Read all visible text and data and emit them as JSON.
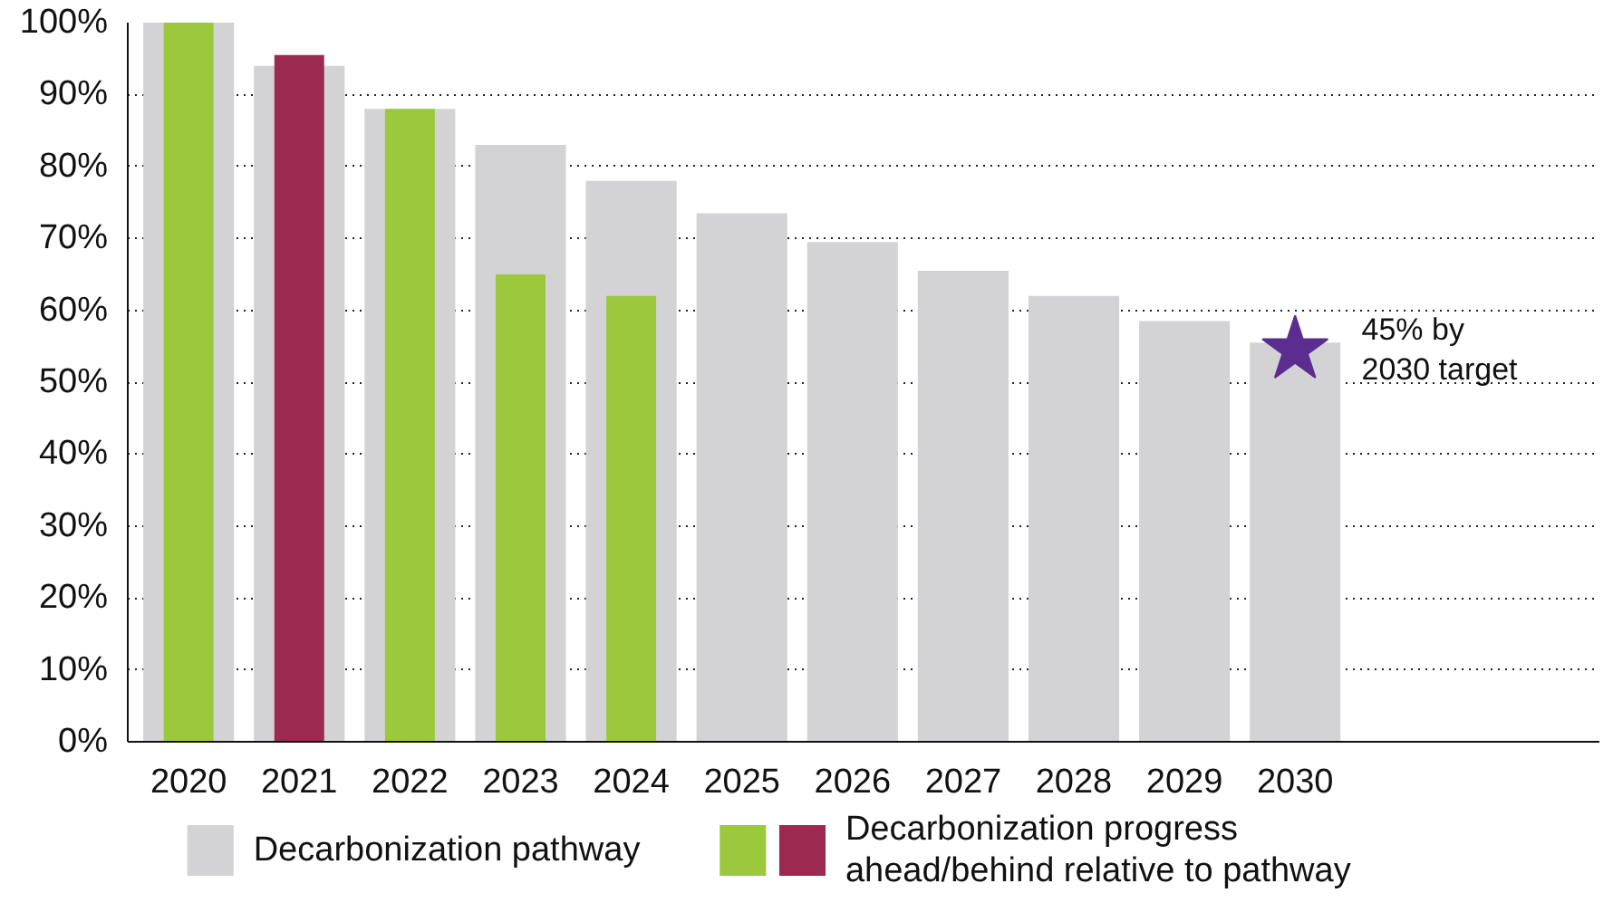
{
  "chart_data": {
    "type": "bar",
    "categories": [
      "2020",
      "2021",
      "2022",
      "2023",
      "2024",
      "2025",
      "2026",
      "2027",
      "2028",
      "2029",
      "2030"
    ],
    "series": [
      {
        "name": "Decarbonization pathway",
        "color": "#d3d3d5",
        "values": [
          100,
          94,
          88,
          83,
          78,
          73.5,
          69.5,
          65.5,
          62,
          58.5,
          55.5
        ]
      },
      {
        "name": "Decarbonization progress\nahead/behind relative to pathway",
        "colors": [
          "#9bc83c",
          "#9c2a50",
          "#9bc83c",
          "#9bc83c",
          "#9bc83c",
          null,
          null,
          null,
          null,
          null,
          null
        ],
        "values": [
          100,
          95.5,
          88,
          65,
          62,
          null,
          null,
          null,
          null,
          null,
          null
        ]
      },
      {
        "type": "scatter",
        "marker": "star",
        "color": "#5b2d90",
        "values": [
          null,
          null,
          null,
          null,
          null,
          null,
          null,
          null,
          null,
          null,
          54.5
        ]
      }
    ],
    "ylim": [
      0,
      100
    ],
    "yticks": [
      {
        "value": 0,
        "label": "0%"
      },
      {
        "value": 10,
        "label": "10%"
      },
      {
        "value": 20,
        "label": "20%"
      },
      {
        "value": 30,
        "label": "30%"
      },
      {
        "value": 40,
        "label": "40%"
      },
      {
        "value": 50,
        "label": "50%"
      },
      {
        "value": 60,
        "label": "60%"
      },
      {
        "value": 70,
        "label": "70%"
      },
      {
        "value": 80,
        "label": "80%"
      },
      {
        "value": 90,
        "label": "90%"
      },
      {
        "value": 100,
        "label": "100%"
      }
    ],
    "grid": "y",
    "legend": "bottom",
    "annotations": [
      {
        "text": "45% by\n2030 target",
        "x": "2030",
        "y": 54.5
      }
    ]
  }
}
